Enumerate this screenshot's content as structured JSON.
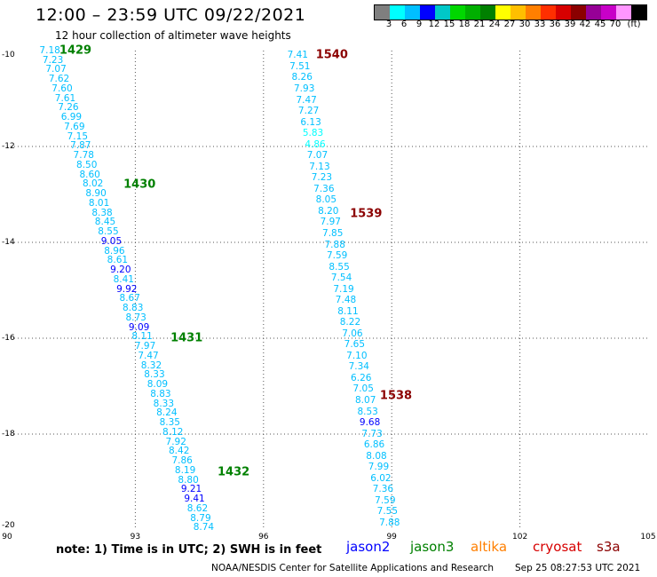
{
  "title": "12:00 – 23:59 UTC 09/22/2021",
  "subtitle": "12 hour collection of altimeter wave heights",
  "legend": {
    "colors": [
      "#7f7f7f",
      "#00ffff",
      "#00bfff",
      "#0000ff",
      "#00c8c8",
      "#00d700",
      "#00af00",
      "#008000",
      "#ffff00",
      "#ffbf00",
      "#ff7f00",
      "#ff2f00",
      "#d70000",
      "#8b0000",
      "#960096",
      "#c800c8",
      "#ff96ff",
      "#000000"
    ],
    "labels": [
      "3",
      "6",
      "9",
      "12",
      "15",
      "18",
      "21",
      "24",
      "27",
      "30",
      "33",
      "36",
      "39",
      "42",
      "45",
      "70",
      "(ft)"
    ]
  },
  "axes": {
    "x_ticks": [
      "90",
      "93",
      "96",
      "99",
      "102",
      "105"
    ],
    "y_ticks": [
      "-10",
      "-12",
      "-14",
      "-16",
      "-18",
      "-20"
    ],
    "lon_range": [
      90,
      105
    ],
    "lat_range": [
      -20,
      -10
    ]
  },
  "chart_data": {
    "type": "scatter",
    "units": "ft",
    "passes": [
      {
        "satellite": "jason3",
        "labels": [
          {
            "text": "1429",
            "lon": 91.6,
            "lat": -10.0
          },
          {
            "text": "1430",
            "lon": 93.1,
            "lat": -12.8
          },
          {
            "text": "1431",
            "lon": 94.2,
            "lat": -16.0
          },
          {
            "text": "1432",
            "lon": 95.3,
            "lat": -18.8
          }
        ],
        "start": {
          "lon": 91.0,
          "lat": -10.0
        },
        "end": {
          "lon": 94.6,
          "lat": -19.95
        },
        "values": [
          "7.18",
          "7.23",
          "7.07",
          "7.62",
          "7.60",
          "7.61",
          "7.26",
          "6.99",
          "7.69",
          "7.15",
          "7.87",
          "7.78",
          "8.50",
          "8.60",
          "8.02",
          "8.90",
          "8.01",
          "8.38",
          "8.45",
          "8.55",
          "9.05",
          "8.96",
          "8.61",
          "9.20",
          "8.41",
          "9.92",
          "8.67",
          "8.83",
          "8.73",
          "9.09",
          "8.11",
          "7.97",
          "7.47",
          "8.32",
          "8.33",
          "8.09",
          "8.83",
          "8.33",
          "8.24",
          "8.35",
          "8.12",
          "7.92",
          "8.42",
          "7.86",
          "8.19",
          "8.80",
          "9.21",
          "9.41",
          "8.62",
          "8.79",
          "8.74"
        ]
      },
      {
        "satellite": "s3a",
        "labels": [
          {
            "text": "1540",
            "lon": 97.6,
            "lat": -10.1
          },
          {
            "text": "1539",
            "lon": 98.4,
            "lat": -13.4
          },
          {
            "text": "1538",
            "lon": 99.1,
            "lat": -17.2
          }
        ],
        "start": {
          "lon": 96.8,
          "lat": -10.1
        },
        "end": {
          "lon": 98.95,
          "lat": -19.85
        },
        "values": [
          "7.41",
          "7.51",
          "8.26",
          "7.93",
          "7.47",
          "7.27",
          "6.13",
          "5.83",
          "4.86",
          "7.07",
          "7.13",
          "7.23",
          "7.36",
          "8.05",
          "8.20",
          "7.97",
          "7.85",
          "7.88",
          "7.59",
          "8.55",
          "7.54",
          "7.19",
          "7.48",
          "8.11",
          "8.22",
          "7.06",
          "7.65",
          "7.10",
          "7.34",
          "6.26",
          "7.05",
          "8.07",
          "8.53",
          "9.68",
          "7.73",
          "6.86",
          "8.08",
          "7.99",
          "6.02",
          "7.36",
          "7.59",
          "7.55",
          "7.88"
        ]
      }
    ]
  },
  "note": "note:  1) Time is in UTC;  2) SWH is in feet",
  "satellites": [
    {
      "name": "jason2",
      "color": "#0000ff"
    },
    {
      "name": "jason3",
      "color": "#008000"
    },
    {
      "name": "altika",
      "color": "#ff7f00"
    },
    {
      "name": "cryosat",
      "color": "#d70000"
    },
    {
      "name": "s3a",
      "color": "#8b0000"
    }
  ],
  "credit": "NOAA/NESDIS Center for Satellite Applications and Research",
  "timestamp": "Sep 25 08:27:53 UTC 2021"
}
